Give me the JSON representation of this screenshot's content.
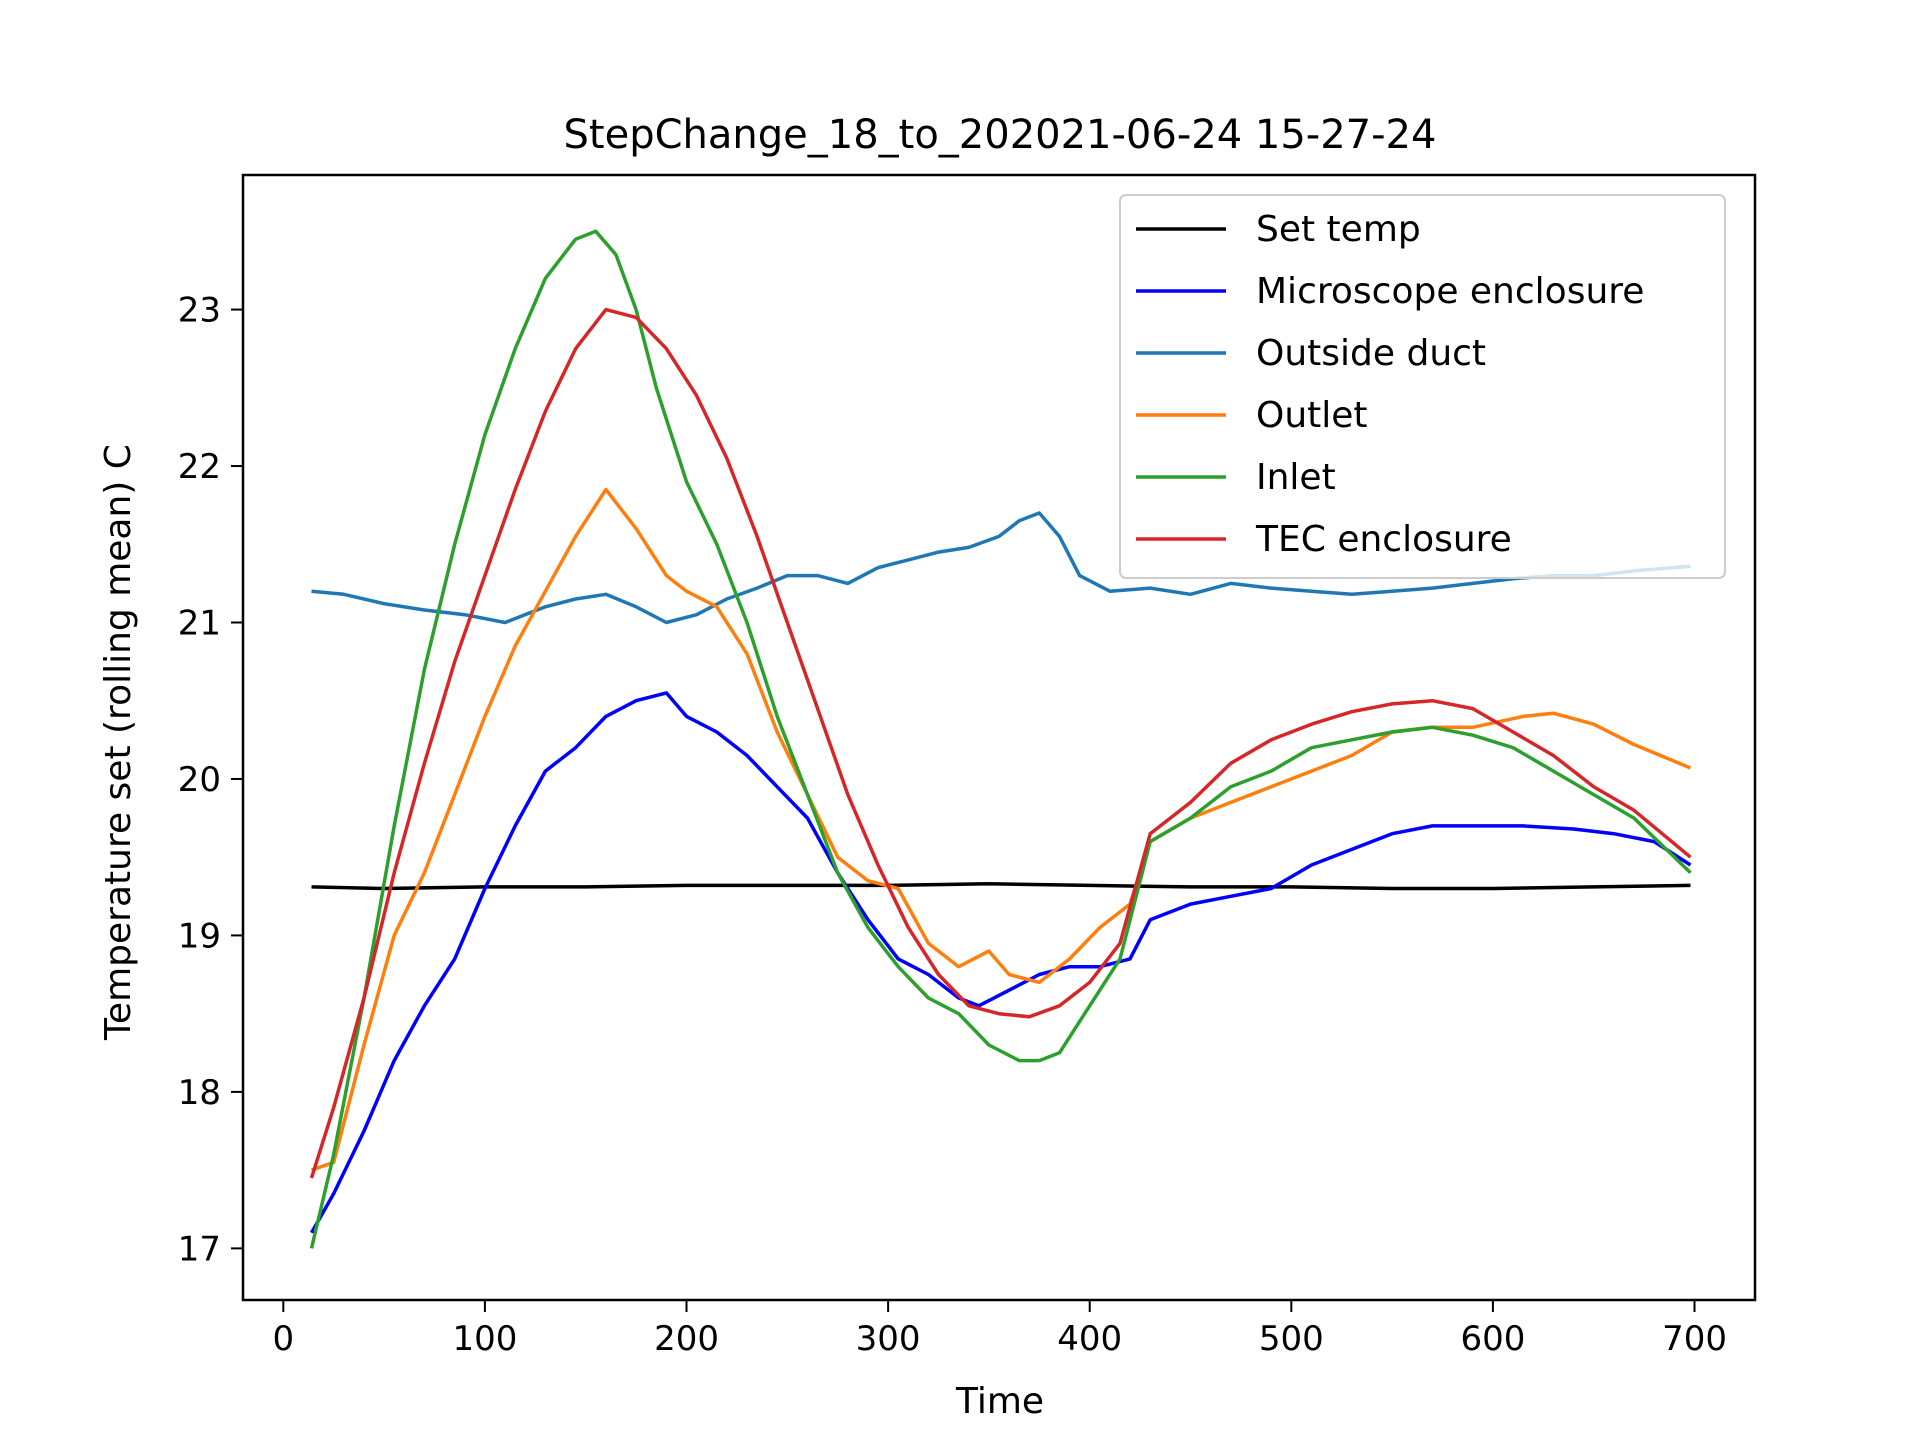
{
  "chart_data": {
    "type": "line",
    "title": "StepChange_18_to_202021-06-24 15-27-24",
    "xlabel": "Time",
    "ylabel": "Temperature set (rolling mean) C",
    "xlim": [
      -20,
      730
    ],
    "ylim": [
      16.67,
      23.86
    ],
    "xticks": [
      {
        "value": 0,
        "label": "0"
      },
      {
        "value": 100,
        "label": "100"
      },
      {
        "value": 200,
        "label": "200"
      },
      {
        "value": 300,
        "label": "300"
      },
      {
        "value": 400,
        "label": "400"
      },
      {
        "value": 500,
        "label": "500"
      },
      {
        "value": 600,
        "label": "600"
      },
      {
        "value": 700,
        "label": "700"
      }
    ],
    "yticks": [
      {
        "value": 17,
        "label": "17"
      },
      {
        "value": 18,
        "label": "18"
      },
      {
        "value": 19,
        "label": "19"
      },
      {
        "value": 20,
        "label": "20"
      },
      {
        "value": 21,
        "label": "21"
      },
      {
        "value": 22,
        "label": "22"
      },
      {
        "value": 23,
        "label": "23"
      }
    ],
    "grid": false,
    "legend_position": "top-right",
    "series": [
      {
        "name": "Set temp",
        "color": "#000000",
        "x": [
          14,
          50,
          100,
          150,
          200,
          250,
          300,
          350,
          400,
          450,
          500,
          550,
          600,
          650,
          698
        ],
        "y": [
          19.31,
          19.3,
          19.31,
          19.31,
          19.32,
          19.32,
          19.32,
          19.33,
          19.32,
          19.31,
          19.31,
          19.3,
          19.3,
          19.31,
          19.32
        ]
      },
      {
        "name": "Microscope enclosure",
        "color": "#0000ff",
        "x": [
          14,
          25,
          40,
          55,
          70,
          85,
          100,
          115,
          130,
          145,
          160,
          175,
          190,
          200,
          215,
          230,
          245,
          260,
          275,
          290,
          305,
          320,
          335,
          345,
          360,
          375,
          390,
          405,
          420,
          430,
          450,
          470,
          490,
          510,
          530,
          550,
          570,
          590,
          615,
          640,
          660,
          680,
          698
        ],
        "y": [
          17.1,
          17.35,
          17.75,
          18.2,
          18.55,
          18.85,
          19.3,
          19.7,
          20.05,
          20.2,
          20.4,
          20.5,
          20.55,
          20.4,
          20.3,
          20.15,
          19.95,
          19.75,
          19.4,
          19.1,
          18.85,
          18.75,
          18.6,
          18.55,
          18.65,
          18.75,
          18.8,
          18.8,
          18.85,
          19.1,
          19.2,
          19.25,
          19.3,
          19.45,
          19.55,
          19.65,
          19.7,
          19.7,
          19.7,
          19.68,
          19.65,
          19.6,
          19.45
        ]
      },
      {
        "name": "Outside duct",
        "color": "#1f77b4",
        "x": [
          14,
          30,
          50,
          70,
          90,
          110,
          130,
          145,
          160,
          175,
          190,
          205,
          220,
          235,
          250,
          265,
          280,
          295,
          310,
          325,
          340,
          355,
          365,
          375,
          385,
          395,
          410,
          430,
          450,
          470,
          490,
          510,
          530,
          550,
          570,
          590,
          610,
          630,
          650,
          670,
          698
        ],
        "y": [
          21.2,
          21.18,
          21.12,
          21.08,
          21.05,
          21.0,
          21.1,
          21.15,
          21.18,
          21.1,
          21.0,
          21.05,
          21.15,
          21.22,
          21.3,
          21.3,
          21.25,
          21.35,
          21.4,
          21.45,
          21.48,
          21.55,
          21.65,
          21.7,
          21.55,
          21.3,
          21.2,
          21.22,
          21.18,
          21.25,
          21.22,
          21.2,
          21.18,
          21.2,
          21.22,
          21.25,
          21.28,
          21.3,
          21.3,
          21.33,
          21.36
        ]
      },
      {
        "name": "Outlet",
        "color": "#ff7f0e",
        "x": [
          14,
          25,
          40,
          55,
          70,
          85,
          100,
          115,
          130,
          145,
          160,
          175,
          190,
          200,
          215,
          230,
          245,
          260,
          275,
          290,
          305,
          320,
          335,
          350,
          360,
          375,
          390,
          405,
          420,
          430,
          450,
          470,
          490,
          510,
          530,
          550,
          570,
          590,
          615,
          630,
          650,
          670,
          698
        ],
        "y": [
          17.5,
          17.55,
          18.3,
          19.0,
          19.4,
          19.9,
          20.4,
          20.85,
          21.2,
          21.55,
          21.85,
          21.6,
          21.3,
          21.2,
          21.1,
          20.8,
          20.3,
          19.9,
          19.5,
          19.35,
          19.3,
          18.95,
          18.8,
          18.9,
          18.75,
          18.7,
          18.85,
          19.05,
          19.2,
          19.6,
          19.75,
          19.85,
          19.95,
          20.05,
          20.15,
          20.3,
          20.33,
          20.33,
          20.4,
          20.42,
          20.35,
          20.22,
          20.07
        ]
      },
      {
        "name": "Inlet",
        "color": "#2ca02c",
        "x": [
          14,
          25,
          40,
          55,
          70,
          85,
          100,
          115,
          130,
          145,
          155,
          165,
          175,
          185,
          200,
          215,
          230,
          245,
          260,
          275,
          290,
          305,
          320,
          335,
          350,
          365,
          375,
          385,
          400,
          415,
          430,
          450,
          470,
          490,
          510,
          530,
          550,
          570,
          590,
          610,
          630,
          650,
          670,
          698
        ],
        "y": [
          17.0,
          17.6,
          18.6,
          19.7,
          20.7,
          21.5,
          22.2,
          22.75,
          23.2,
          23.45,
          23.5,
          23.35,
          23.0,
          22.5,
          21.9,
          21.5,
          21.0,
          20.4,
          19.9,
          19.4,
          19.05,
          18.8,
          18.6,
          18.5,
          18.3,
          18.2,
          18.2,
          18.25,
          18.55,
          18.85,
          19.6,
          19.75,
          19.95,
          20.05,
          20.2,
          20.25,
          20.3,
          20.33,
          20.28,
          20.2,
          20.05,
          19.9,
          19.75,
          19.4
        ]
      },
      {
        "name": "TEC enclosure",
        "color": "#d62728",
        "x": [
          14,
          25,
          40,
          55,
          70,
          85,
          100,
          115,
          130,
          145,
          160,
          175,
          190,
          205,
          220,
          235,
          250,
          265,
          280,
          295,
          310,
          325,
          340,
          355,
          370,
          385,
          400,
          415,
          430,
          450,
          470,
          490,
          510,
          530,
          550,
          570,
          590,
          610,
          630,
          650,
          670,
          698
        ],
        "y": [
          17.45,
          17.9,
          18.6,
          19.4,
          20.1,
          20.75,
          21.3,
          21.85,
          22.35,
          22.75,
          23.0,
          22.95,
          22.75,
          22.45,
          22.05,
          21.55,
          21.0,
          20.45,
          19.9,
          19.45,
          19.05,
          18.75,
          18.55,
          18.5,
          18.48,
          18.55,
          18.7,
          18.95,
          19.65,
          19.85,
          20.1,
          20.25,
          20.35,
          20.43,
          20.48,
          20.5,
          20.45,
          20.3,
          20.15,
          19.95,
          19.8,
          19.5
        ]
      }
    ]
  }
}
